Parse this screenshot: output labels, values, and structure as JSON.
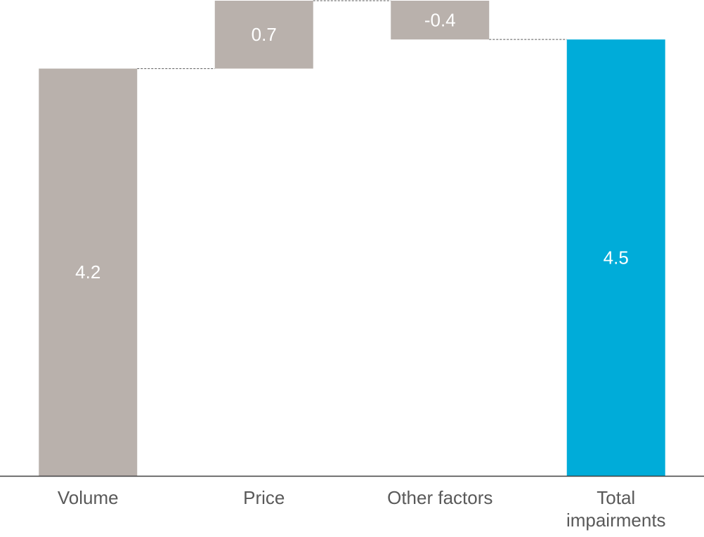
{
  "chart_data": {
    "type": "waterfall",
    "categories": [
      "Volume",
      "Price",
      "Other factors",
      "Total impairments"
    ],
    "values": [
      4.2,
      0.7,
      -0.4,
      4.5
    ],
    "totals": [
      false,
      false,
      false,
      true
    ],
    "colors": [
      "#b9b1ac",
      "#b9b1ac",
      "#b9b1ac",
      "#00acd9"
    ],
    "ylim": [
      0,
      4.9
    ]
  }
}
